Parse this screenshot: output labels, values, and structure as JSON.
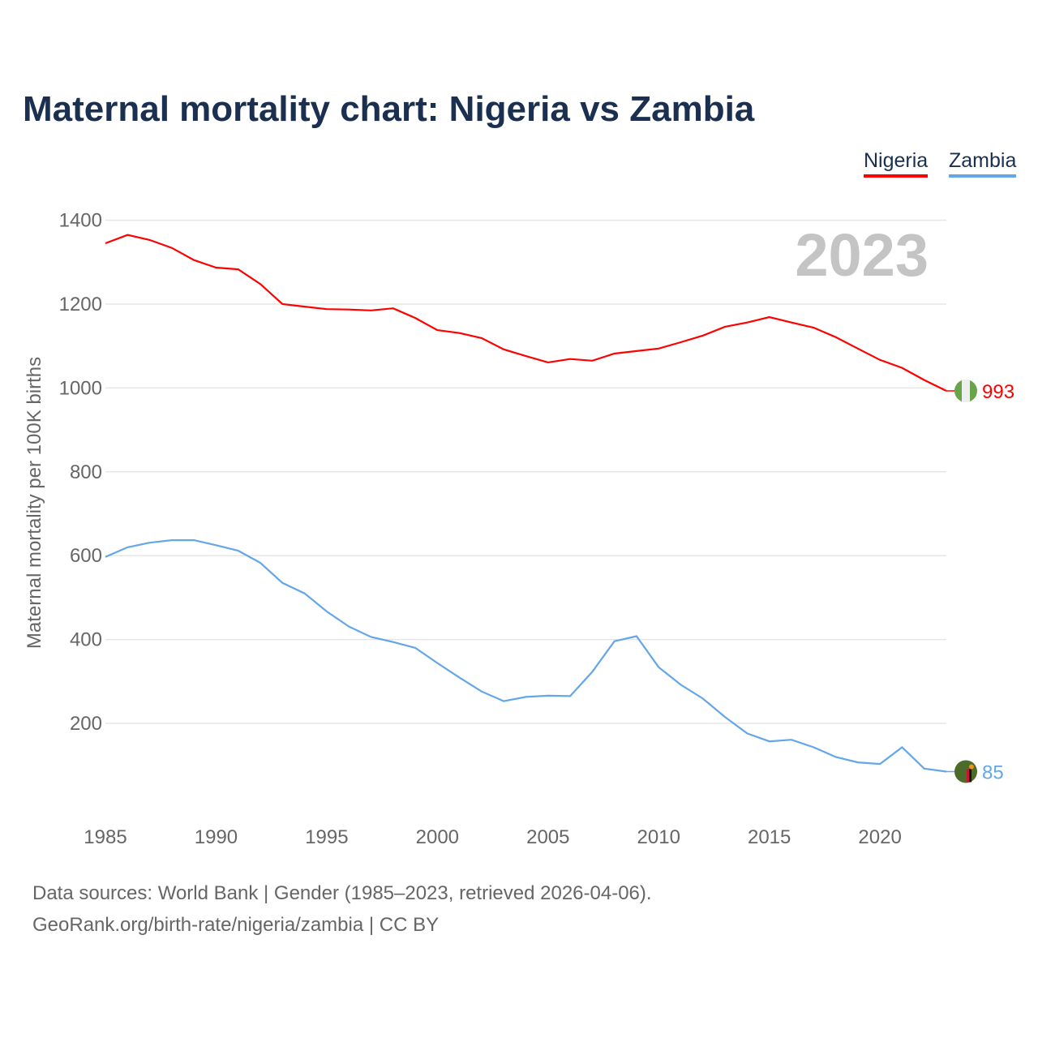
{
  "chart_data": {
    "type": "line",
    "title": "Maternal mortality chart: Nigeria vs Zambia",
    "ylabel": "Maternal mortality per 100K births",
    "xlabel": "",
    "ylim": [
      0,
      1400
    ],
    "xlim": [
      1985,
      2023
    ],
    "yticks": [
      200,
      400,
      600,
      800,
      1000,
      1200,
      1400
    ],
    "xticks": [
      1985,
      1990,
      1995,
      2000,
      2005,
      2010,
      2015,
      2020
    ],
    "grid": true,
    "legend_position": "top-right",
    "year_label": "2023",
    "x": [
      1985,
      1986,
      1987,
      1988,
      1989,
      1990,
      1991,
      1992,
      1993,
      1994,
      1995,
      1996,
      1997,
      1998,
      1999,
      2000,
      2001,
      2002,
      2003,
      2004,
      2005,
      2006,
      2007,
      2008,
      2009,
      2010,
      2011,
      2012,
      2013,
      2014,
      2015,
      2016,
      2017,
      2018,
      2019,
      2020,
      2021,
      2022,
      2023
    ],
    "series": [
      {
        "name": "Nigeria",
        "color": "#ff0000",
        "end_label": "993",
        "values": [
          1345,
          1365,
          1353,
          1334,
          1305,
          1287,
          1283,
          1248,
          1200,
          1194,
          1188,
          1187,
          1185,
          1190,
          1167,
          1138,
          1131,
          1119,
          1092,
          1076,
          1061,
          1069,
          1065,
          1082,
          1088,
          1094,
          1109,
          1125,
          1146,
          1156,
          1169,
          1156,
          1144,
          1121,
          1094,
          1067,
          1048,
          1019,
          993
        ]
      },
      {
        "name": "Zambia",
        "color": "#63a6ea",
        "end_label": "85",
        "values": [
          597,
          620,
          631,
          637,
          637,
          625,
          612,
          583,
          535,
          510,
          467,
          431,
          406,
          394,
          380,
          344,
          309,
          276,
          253,
          263,
          266,
          265,
          323,
          396,
          408,
          334,
          292,
          259,
          215,
          176,
          157,
          161,
          143,
          120,
          107,
          103,
          143,
          92,
          85
        ]
      }
    ]
  },
  "footer": {
    "line1": "Data sources: World Bank | Gender (1985–2023, retrieved 2026-04-06).",
    "line2": "GeoRank.org/birth-rate/nigeria/zambia | CC BY"
  }
}
